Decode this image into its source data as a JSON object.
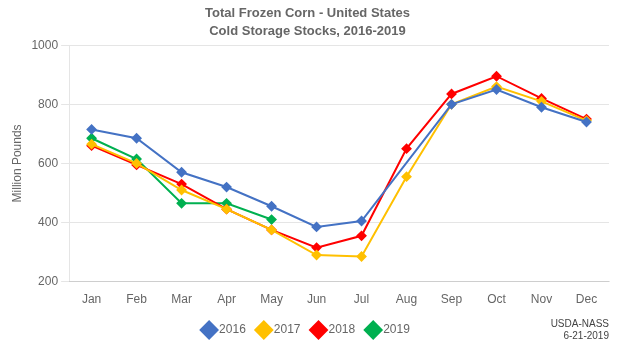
{
  "chart_data": {
    "type": "line",
    "title": "Total Frozen Corn - United States",
    "subtitle": "Cold Storage Stocks, 2016-2019",
    "y_label": "Million Pounds",
    "annotation": "USDA-NASS\n6-21-2019",
    "categories": [
      "Jan",
      "Feb",
      "Mar",
      "Apr",
      "May",
      "Jun",
      "Jul",
      "Aug",
      "Sep",
      "Oct",
      "Nov",
      "Dec"
    ],
    "series": [
      {
        "name": "2016",
        "color": "#4472C4",
        "values": [
          715,
          685,
          570,
          520,
          455,
          385,
          405,
          null,
          800,
          850,
          790,
          740
        ]
      },
      {
        "name": "2017",
        "color": "#FFC000",
        "values": [
          665,
          600,
          510,
          445,
          375,
          290,
          285,
          555,
          800,
          860,
          810,
          745
        ]
      },
      {
        "name": "2018",
        "color": "#FF0000",
        "values": [
          660,
          595,
          530,
          445,
          375,
          315,
          355,
          650,
          835,
          895,
          820,
          750
        ]
      },
      {
        "name": "2019",
        "color": "#00B050",
        "values": [
          685,
          615,
          465,
          465,
          410,
          null,
          null,
          null,
          null,
          null,
          null,
          null
        ]
      }
    ],
    "ylim": [
      200,
      1000
    ],
    "yticks": [
      200,
      400,
      600,
      800,
      1000
    ],
    "marker": "diamond",
    "grid": true,
    "legend": "bottom"
  }
}
